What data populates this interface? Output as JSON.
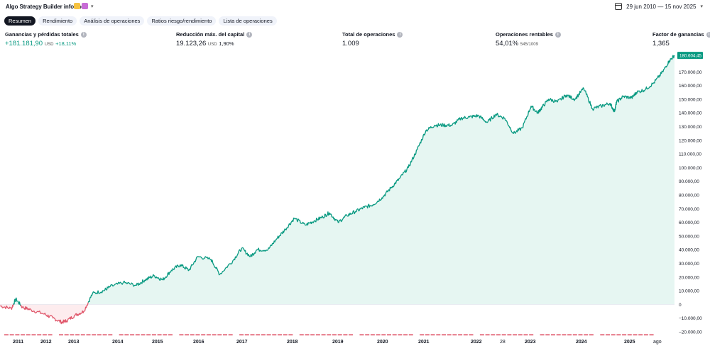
{
  "header": {
    "title": "Algo Strategy Builder informe",
    "date_range": "29 jun 2010 — 15 nov 2025",
    "icons": [
      "emoji-badge-icon",
      "calendar-badge-icon",
      "chevron-down-icon",
      "calendar-icon",
      "dropdown-icon"
    ]
  },
  "tabs": [
    "Resumen",
    "Rendimiento",
    "Análisis de operaciones",
    "Ratios riesgo/rendimiento",
    "Lista de operaciones"
  ],
  "metrics": {
    "net_profit": {
      "label": "Ganancias y pérdidas totales",
      "value": "+181.181,90",
      "unit": "USD",
      "pct": "+18,11%"
    },
    "drawdown": {
      "label": "Reducción máx. del capital",
      "value": "19.123,26",
      "unit": "USD",
      "pct": "1,90%"
    },
    "trades": {
      "label": "Total de operaciones",
      "value": "1.009"
    },
    "profitable": {
      "label": "Operaciones rentables",
      "value": "54,01%",
      "sub": "545/1009"
    },
    "profit_factor": {
      "label": "Factor de ganancias",
      "value": "1,365"
    }
  },
  "colors": {
    "positive": "#089981",
    "negative": "#e0576b",
    "fill_pos": "#e6f6f2",
    "fill_neg": "#fdecee",
    "badge": "#089981"
  },
  "chart_data": {
    "type": "area",
    "last_value_label": "180.604,45",
    "y_ticks": [
      "170.000,00",
      "160.000,00",
      "150.000,00",
      "140.000,00",
      "130.000,00",
      "120.000,00",
      "110.000,00",
      "100.000,00",
      "90.000,00",
      "80.000,00",
      "70.000,00",
      "60.000,00",
      "50.000,00",
      "40.000,00",
      "30.000,00",
      "20.000,00",
      "10.000,00",
      "0",
      "−10.000,00",
      "−20.000,00"
    ],
    "x_ticks": [
      "2011",
      "2012",
      "2013",
      "2014",
      "2015",
      "2016",
      "2017",
      "2018",
      "2019",
      "2020",
      "2021",
      "2022",
      "28",
      "2023",
      "2024",
      "2025",
      "ago"
    ],
    "x": [
      2010.49,
      2010.75,
      2010.85,
      2011.0,
      2011.2,
      2011.5,
      2011.7,
      2011.9,
      2012.0,
      2012.2,
      2012.4,
      2012.6,
      2012.85,
      2013.0,
      2013.3,
      2013.6,
      2013.8,
      2014.0,
      2014.2,
      2014.4,
      2014.6,
      2014.8,
      2015.0,
      2015.3,
      2015.5,
      2015.8,
      2016.0,
      2016.2,
      2016.35,
      2016.6,
      2016.8,
      2017.0,
      2017.2,
      2017.45,
      2017.65,
      2017.85,
      2018.0,
      2018.2,
      2018.4,
      2018.6,
      2018.8,
      2019.0,
      2019.2,
      2019.4,
      2019.6,
      2019.8,
      2020.0,
      2020.2,
      2020.4,
      2020.6,
      2020.8,
      2021.0,
      2021.2,
      2021.4,
      2021.6,
      2021.8,
      2022.0,
      2022.2,
      2022.4,
      2022.6,
      2022.75,
      2022.85,
      2023.0,
      2023.2,
      2023.4,
      2023.6,
      2023.8,
      2024.0,
      2024.2,
      2024.4,
      2024.5,
      2024.55,
      2024.7,
      2024.9,
      2025.0,
      2025.2,
      2025.4,
      2025.6,
      2025.75,
      2025.87
    ],
    "y": [
      -1000,
      -3000,
      4000,
      -2000,
      -4000,
      -7000,
      -10000,
      -13000,
      -12000,
      -8000,
      -5000,
      8000,
      10000,
      13000,
      16000,
      14000,
      18000,
      21000,
      18000,
      25000,
      29000,
      25000,
      35000,
      33000,
      22000,
      32000,
      41000,
      35000,
      40000,
      40000,
      48000,
      55000,
      63000,
      58000,
      61000,
      64000,
      67000,
      60000,
      65000,
      68000,
      71000,
      73000,
      78000,
      85000,
      92000,
      100000,
      113000,
      127000,
      131000,
      131000,
      131000,
      136000,
      137000,
      138000,
      133000,
      139000,
      136000,
      125000,
      129000,
      145000,
      140000,
      144000,
      150000,
      148000,
      153000,
      150000,
      158000,
      143000,
      145000,
      147000,
      141000,
      148000,
      152000,
      151000,
      155000,
      157000,
      162000,
      170000,
      178000,
      182000
    ],
    "y_range": [
      -20000,
      180000
    ],
    "x_range": [
      2010.49,
      2025.87
    ],
    "negative_trade_marks": true
  }
}
